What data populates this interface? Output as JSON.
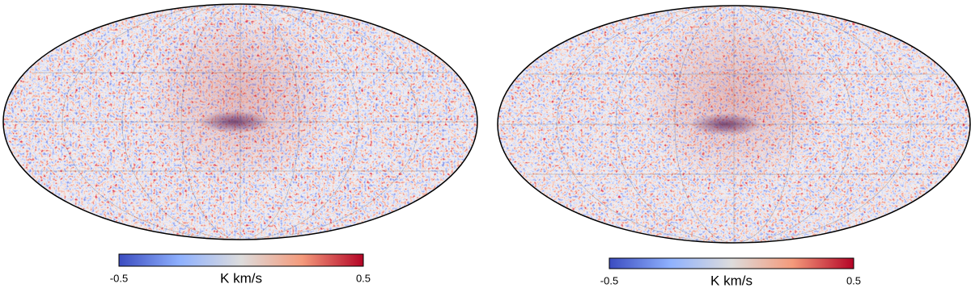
{
  "maps": [
    {
      "colorbar": {
        "ticks": [
          -0.5,
          0.5
        ],
        "label": "K km/s"
      }
    },
    {
      "colorbar": {
        "ticks": [
          -0.5,
          0.5
        ],
        "label": "K km/s"
      }
    }
  ]
}
